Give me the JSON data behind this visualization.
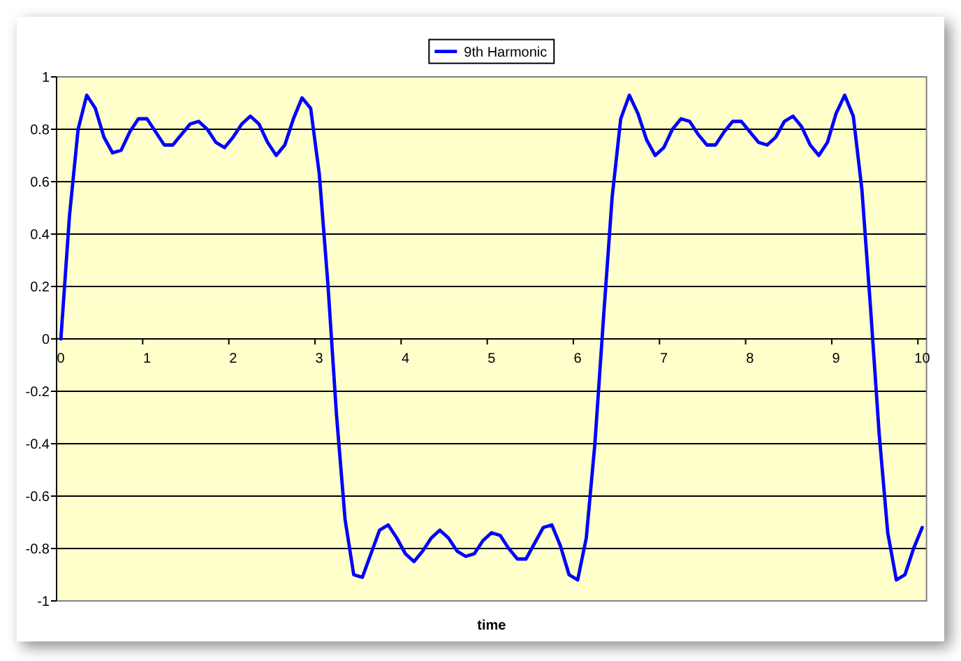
{
  "chart_data": {
    "type": "line",
    "categories": [
      "0",
      null,
      null,
      null,
      null,
      null,
      null,
      null,
      null,
      null,
      "1",
      null,
      null,
      null,
      null,
      null,
      null,
      null,
      null,
      null,
      "2",
      null,
      null,
      null,
      null,
      null,
      null,
      null,
      null,
      null,
      "3",
      null,
      null,
      null,
      null,
      null,
      null,
      null,
      null,
      null,
      "4",
      null,
      null,
      null,
      null,
      null,
      null,
      null,
      null,
      null,
      "5",
      null,
      null,
      null,
      null,
      null,
      null,
      null,
      null,
      null,
      "6",
      null,
      null,
      null,
      null,
      null,
      null,
      null,
      null,
      null,
      "7",
      null,
      null,
      null,
      null,
      null,
      null,
      null,
      null,
      null,
      "8",
      null,
      null,
      null,
      null,
      null,
      null,
      null,
      null,
      null,
      "9",
      null,
      null,
      null,
      null,
      null,
      null,
      null,
      null,
      null,
      "10"
    ],
    "series": [
      {
        "name": "9th Harmonic",
        "color": "#0000ff",
        "values": [
          0,
          0.47,
          0.8,
          0.93,
          0.88,
          0.77,
          0.71,
          0.72,
          0.79,
          0.84,
          0.84,
          0.79,
          0.74,
          0.74,
          0.78,
          0.82,
          0.83,
          0.8,
          0.75,
          0.73,
          0.77,
          0.82,
          0.85,
          0.82,
          0.75,
          0.7,
          0.74,
          0.84,
          0.92,
          0.88,
          0.63,
          0.21,
          -0.29,
          -0.69,
          -0.9,
          -0.91,
          -0.82,
          -0.73,
          -0.71,
          -0.76,
          -0.82,
          -0.85,
          -0.81,
          -0.76,
          -0.73,
          -0.76,
          -0.81,
          -0.83,
          -0.82,
          -0.77,
          -0.74,
          -0.75,
          -0.8,
          -0.84,
          -0.84,
          -0.78,
          -0.72,
          -0.71,
          -0.79,
          -0.9,
          -0.92,
          -0.76,
          -0.4,
          0.08,
          0.54,
          0.84,
          0.93,
          0.86,
          0.76,
          0.7,
          0.73,
          0.8,
          0.84,
          0.83,
          0.78,
          0.74,
          0.74,
          0.79,
          0.83,
          0.83,
          0.79,
          0.75,
          0.74,
          0.77,
          0.83,
          0.85,
          0.81,
          0.74,
          0.7,
          0.75,
          0.86,
          0.93,
          0.85,
          0.57,
          0.12,
          -0.36,
          -0.74,
          -0.92,
          -0.9,
          -0.8,
          -0.72
        ]
      }
    ],
    "xlabel": "time",
    "ylim": [
      -1,
      1
    ],
    "yticks": [
      -1,
      -0.8,
      -0.6,
      -0.4,
      -0.2,
      0,
      0.2,
      0.4,
      0.6,
      0.8,
      1
    ],
    "grid": "y",
    "legend": "top",
    "line_style": "solid"
  }
}
